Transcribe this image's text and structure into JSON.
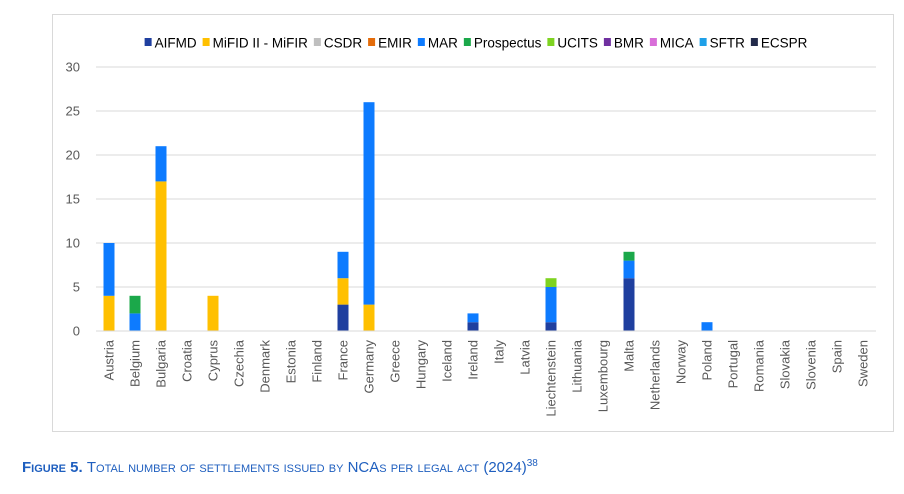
{
  "chart_data": {
    "type": "bar",
    "stacked": true,
    "categories": [
      "Austria",
      "Belgium",
      "Bulgaria",
      "Croatia",
      "Cyprus",
      "Czechia",
      "Denmark",
      "Estonia",
      "Finland",
      "France",
      "Germany",
      "Greece",
      "Hungary",
      "Iceland",
      "Ireland",
      "Italy",
      "Latvia",
      "Liechtenstein",
      "Lithuania",
      "Luxembourg",
      "Malta",
      "Netherlands",
      "Norway",
      "Poland",
      "Portugal",
      "Romania",
      "Slovakia",
      "Slovenia",
      "Spain",
      "Sweden"
    ],
    "series": [
      {
        "name": "AIFMD",
        "color": "#1f3f9f",
        "values": [
          0,
          0,
          0,
          0,
          0,
          0,
          0,
          0,
          0,
          3,
          0,
          0,
          0,
          0,
          1,
          0,
          0,
          1,
          0,
          0,
          6,
          0,
          0,
          0,
          0,
          0,
          0,
          0,
          0,
          0
        ]
      },
      {
        "name": "MiFID II - MiFIR",
        "color": "#ffc000",
        "values": [
          4,
          0,
          17,
          0,
          4,
          0,
          0,
          0,
          0,
          3,
          3,
          0,
          0,
          0,
          0,
          0,
          0,
          0,
          0,
          0,
          0,
          0,
          0,
          0,
          0,
          0,
          0,
          0,
          0,
          0
        ]
      },
      {
        "name": "CSDR",
        "color": "#bfbfbf",
        "values": [
          0,
          0,
          0,
          0,
          0,
          0,
          0,
          0,
          0,
          0,
          0,
          0,
          0,
          0,
          0,
          0,
          0,
          0,
          0,
          0,
          0,
          0,
          0,
          0,
          0,
          0,
          0,
          0,
          0,
          0
        ]
      },
      {
        "name": "EMIR",
        "color": "#e46c0a",
        "values": [
          0,
          0,
          0,
          0,
          0,
          0,
          0,
          0,
          0,
          0,
          0,
          0,
          0,
          0,
          0,
          0,
          0,
          0,
          0,
          0,
          0,
          0,
          0,
          0,
          0,
          0,
          0,
          0,
          0,
          0
        ]
      },
      {
        "name": "MAR",
        "color": "#0d7bff",
        "values": [
          6,
          2,
          4,
          0,
          0,
          0,
          0,
          0,
          0,
          3,
          23,
          0,
          0,
          0,
          1,
          0,
          0,
          4,
          0,
          0,
          2,
          0,
          0,
          1,
          0,
          0,
          0,
          0,
          0,
          0
        ]
      },
      {
        "name": "Prospectus",
        "color": "#1ba84a",
        "values": [
          0,
          2,
          0,
          0,
          0,
          0,
          0,
          0,
          0,
          0,
          0,
          0,
          0,
          0,
          0,
          0,
          0,
          0,
          0,
          0,
          1,
          0,
          0,
          0,
          0,
          0,
          0,
          0,
          0,
          0
        ]
      },
      {
        "name": "UCITS",
        "color": "#7ed321",
        "values": [
          0,
          0,
          0,
          0,
          0,
          0,
          0,
          0,
          0,
          0,
          0,
          0,
          0,
          0,
          0,
          0,
          0,
          1,
          0,
          0,
          0,
          0,
          0,
          0,
          0,
          0,
          0,
          0,
          0,
          0
        ]
      },
      {
        "name": "BMR",
        "color": "#7030a0",
        "values": [
          0,
          0,
          0,
          0,
          0,
          0,
          0,
          0,
          0,
          0,
          0,
          0,
          0,
          0,
          0,
          0,
          0,
          0,
          0,
          0,
          0,
          0,
          0,
          0,
          0,
          0,
          0,
          0,
          0,
          0
        ]
      },
      {
        "name": "MICA",
        "color": "#d86ed8",
        "values": [
          0,
          0,
          0,
          0,
          0,
          0,
          0,
          0,
          0,
          0,
          0,
          0,
          0,
          0,
          0,
          0,
          0,
          0,
          0,
          0,
          0,
          0,
          0,
          0,
          0,
          0,
          0,
          0,
          0,
          0
        ]
      },
      {
        "name": "SFTR",
        "color": "#1fa0e8",
        "values": [
          0,
          0,
          0,
          0,
          0,
          0,
          0,
          0,
          0,
          0,
          0,
          0,
          0,
          0,
          0,
          0,
          0,
          0,
          0,
          0,
          0,
          0,
          0,
          0,
          0,
          0,
          0,
          0,
          0,
          0
        ]
      },
      {
        "name": "ECSPR",
        "color": "#222a4a",
        "values": [
          0,
          0,
          0,
          0,
          0,
          0,
          0,
          0,
          0,
          0,
          0,
          0,
          0,
          0,
          0,
          0,
          0,
          0,
          0,
          0,
          0,
          0,
          0,
          0,
          0,
          0,
          0,
          0,
          0,
          0
        ]
      }
    ],
    "ylim": [
      0,
      30
    ],
    "yticks": [
      0,
      5,
      10,
      15,
      20,
      25,
      30
    ],
    "grid": true,
    "legend": "top",
    "title": "",
    "xlabel": "",
    "ylabel": ""
  },
  "caption": {
    "figure_label": "Figure 5.",
    "text": "Total number of settlements issued by NCAs per legal act (2024)",
    "footnote": "38"
  }
}
